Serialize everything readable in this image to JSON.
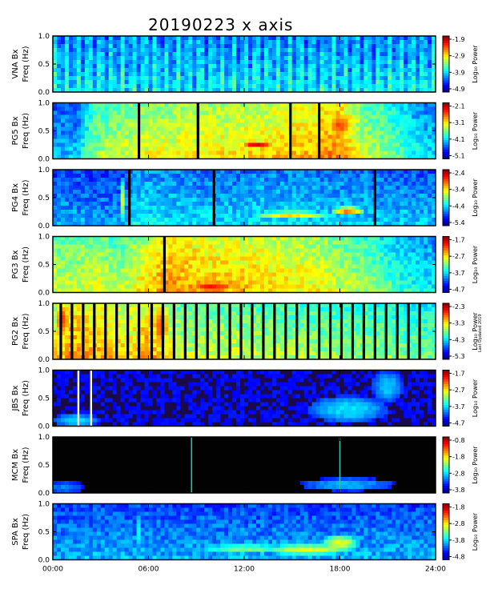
{
  "chart_data": {
    "type": "heatmap",
    "title": "20190223 x axis",
    "x_ticks": [
      "00:00",
      "06:00",
      "12:00",
      "18:00",
      "24:00"
    ],
    "x_range_hours": [
      0,
      24
    ],
    "y_ticks": [
      "0.0",
      "0.5",
      "1.0"
    ],
    "y_range_hz": [
      0,
      1
    ],
    "colorbar_label": "Log₁₀ Power",
    "credit": "Last Updated 2019",
    "panels": [
      {
        "station": "VNA Bx",
        "ylabel": "Freq (Hz)",
        "cbar_ticks": [
          "-1.9",
          "-2.9",
          "-3.9",
          "-4.9"
        ],
        "base": [
          [
            0,
            0.35
          ],
          [
            24,
            0.35
          ]
        ],
        "bright": [],
        "gaps": [],
        "striated": true
      },
      {
        "station": "PG5 Bx",
        "ylabel": "Freq (Hz)",
        "cbar_ticks": [
          "-2.1",
          "-3.1",
          "-4.1",
          "-5.1"
        ],
        "base": [
          [
            0,
            0.3
          ],
          [
            1.5,
            0.3
          ],
          [
            2.5,
            0.5
          ],
          [
            5,
            0.58
          ],
          [
            9,
            0.62
          ],
          [
            13,
            0.64
          ],
          [
            16,
            0.68
          ],
          [
            18,
            0.74
          ],
          [
            19.5,
            0.55
          ],
          [
            21,
            0.5
          ],
          [
            23,
            0.35
          ],
          [
            24,
            0.32
          ]
        ],
        "bright": [
          {
            "t": 12.8,
            "f": 0.25,
            "dt": 1.2,
            "df": 0.05,
            "v": 0.9
          },
          {
            "t": 18,
            "f": 0.6,
            "dt": 1.0,
            "df": 0.3,
            "v": 0.8
          }
        ],
        "gaps": [
          5.4,
          9.1,
          14.9,
          16.7
        ]
      },
      {
        "station": "PG4 Bx",
        "ylabel": "Freq (Hz)",
        "cbar_ticks": [
          "-2.4",
          "-3.4",
          "-4.4",
          "-5.4"
        ],
        "base": [
          [
            0,
            0.28
          ],
          [
            4.5,
            0.26
          ],
          [
            5,
            0.36
          ],
          [
            10,
            0.32
          ],
          [
            14,
            0.34
          ],
          [
            19,
            0.32
          ],
          [
            24,
            0.3
          ]
        ],
        "bright": [
          {
            "t": 15,
            "f": 0.2,
            "dt": 2.6,
            "df": 0.06,
            "v": 0.7
          },
          {
            "t": 18.5,
            "f": 0.26,
            "dt": 1.0,
            "df": 0.08,
            "v": 0.75
          },
          {
            "t": 4.4,
            "f": 0.45,
            "dt": 0.2,
            "df": 0.4,
            "v": 0.55
          }
        ],
        "gaps": [
          4.8,
          10.1,
          20.2
        ]
      },
      {
        "station": "PG3 Bx",
        "ylabel": "Freq (Hz)",
        "cbar_ticks": [
          "-1.7",
          "-2.7",
          "-3.7",
          "-4.7"
        ],
        "base": [
          [
            0,
            0.55
          ],
          [
            3,
            0.58
          ],
          [
            4,
            0.52
          ],
          [
            7,
            0.72
          ],
          [
            10,
            0.68
          ],
          [
            13,
            0.66
          ],
          [
            17,
            0.6
          ],
          [
            20,
            0.5
          ],
          [
            22,
            0.4
          ],
          [
            24,
            0.35
          ]
        ],
        "bright": [
          {
            "t": 10,
            "f": 0.1,
            "dt": 2,
            "df": 0.15,
            "v": 0.85
          }
        ],
        "gaps": [
          7.0
        ]
      },
      {
        "station": "PG2 Bx",
        "ylabel": "Freq (Hz)",
        "cbar_ticks": [
          "-2.3",
          "-3.3",
          "-4.3",
          "-5.3"
        ],
        "base": [
          [
            0,
            0.62
          ],
          [
            1,
            0.72
          ],
          [
            3,
            0.68
          ],
          [
            5,
            0.64
          ],
          [
            6,
            0.72
          ],
          [
            8,
            0.55
          ],
          [
            12,
            0.55
          ],
          [
            16,
            0.52
          ],
          [
            20,
            0.5
          ],
          [
            24,
            0.46
          ]
        ],
        "bright": [
          {
            "t": 6.8,
            "f": 0.6,
            "dt": 0.6,
            "df": 0.5,
            "v": 0.82
          },
          {
            "t": 0.6,
            "f": 0.7,
            "dt": 0.5,
            "df": 0.4,
            "v": 0.82
          }
        ],
        "gaps": [
          0.5,
          1.2,
          1.9,
          2.6,
          3.3,
          4.0,
          4.7,
          5.4,
          6.2,
          6.9,
          7.6,
          8.3,
          9.0,
          9.7,
          10.4,
          11.1,
          11.8,
          12.5,
          13.2,
          13.9,
          14.6,
          15.3,
          16.0,
          16.7,
          17.4,
          18.1,
          18.8,
          19.5,
          20.2,
          20.9,
          21.6,
          22.3,
          23.0
        ]
      },
      {
        "station": "JBS Bx",
        "ylabel": "Freq (Hz)",
        "cbar_ticks": [
          "-1.7",
          "-2.7",
          "-3.7",
          "-4.7"
        ],
        "base": [
          [
            0,
            0.12
          ],
          [
            24,
            0.12
          ]
        ],
        "bright": [
          {
            "t": 1.5,
            "f": 0.1,
            "dt": 1.5,
            "df": 0.12,
            "v": 0.35
          },
          {
            "t": 18.5,
            "f": 0.3,
            "dt": 2.5,
            "df": 0.25,
            "v": 0.35
          },
          {
            "t": 21,
            "f": 0.7,
            "dt": 1.0,
            "df": 0.3,
            "v": 0.32
          }
        ],
        "gaps": [],
        "white_lines": [
          1.6,
          2.4
        ]
      },
      {
        "station": "MCM Bx",
        "ylabel": "Freq (Hz)",
        "cbar_ticks": [
          "-0.8",
          "-1.8",
          "-2.8",
          "-3.8"
        ],
        "base": [
          [
            0,
            0.02
          ],
          [
            24,
            0.02
          ]
        ],
        "bright": [
          {
            "t": 0.8,
            "f": 0.1,
            "dt": 1.2,
            "df": 0.12,
            "v": 0.25
          },
          {
            "t": 18.5,
            "f": 0.15,
            "dt": 3,
            "df": 0.12,
            "v": 0.3
          }
        ],
        "gaps": [],
        "spikes": [
          8.7,
          18.0
        ],
        "dark": true
      },
      {
        "station": "SPA Bx",
        "ylabel": "Freq (Hz)",
        "cbar_ticks": [
          "-1.8",
          "-2.8",
          "-3.8",
          "-4.8"
        ],
        "base": [
          [
            0,
            0.28
          ],
          [
            24,
            0.28
          ]
        ],
        "bright": [
          {
            "t": 16,
            "f": 0.18,
            "dt": 3,
            "df": 0.1,
            "v": 0.6
          },
          {
            "t": 12,
            "f": 0.2,
            "dt": 3,
            "df": 0.08,
            "v": 0.5
          },
          {
            "t": 18,
            "f": 0.3,
            "dt": 1.2,
            "df": 0.15,
            "v": 0.6
          },
          {
            "t": 5.3,
            "f": 0.5,
            "dt": 0.15,
            "df": 0.4,
            "v": 0.45
          }
        ],
        "gaps": []
      }
    ]
  }
}
